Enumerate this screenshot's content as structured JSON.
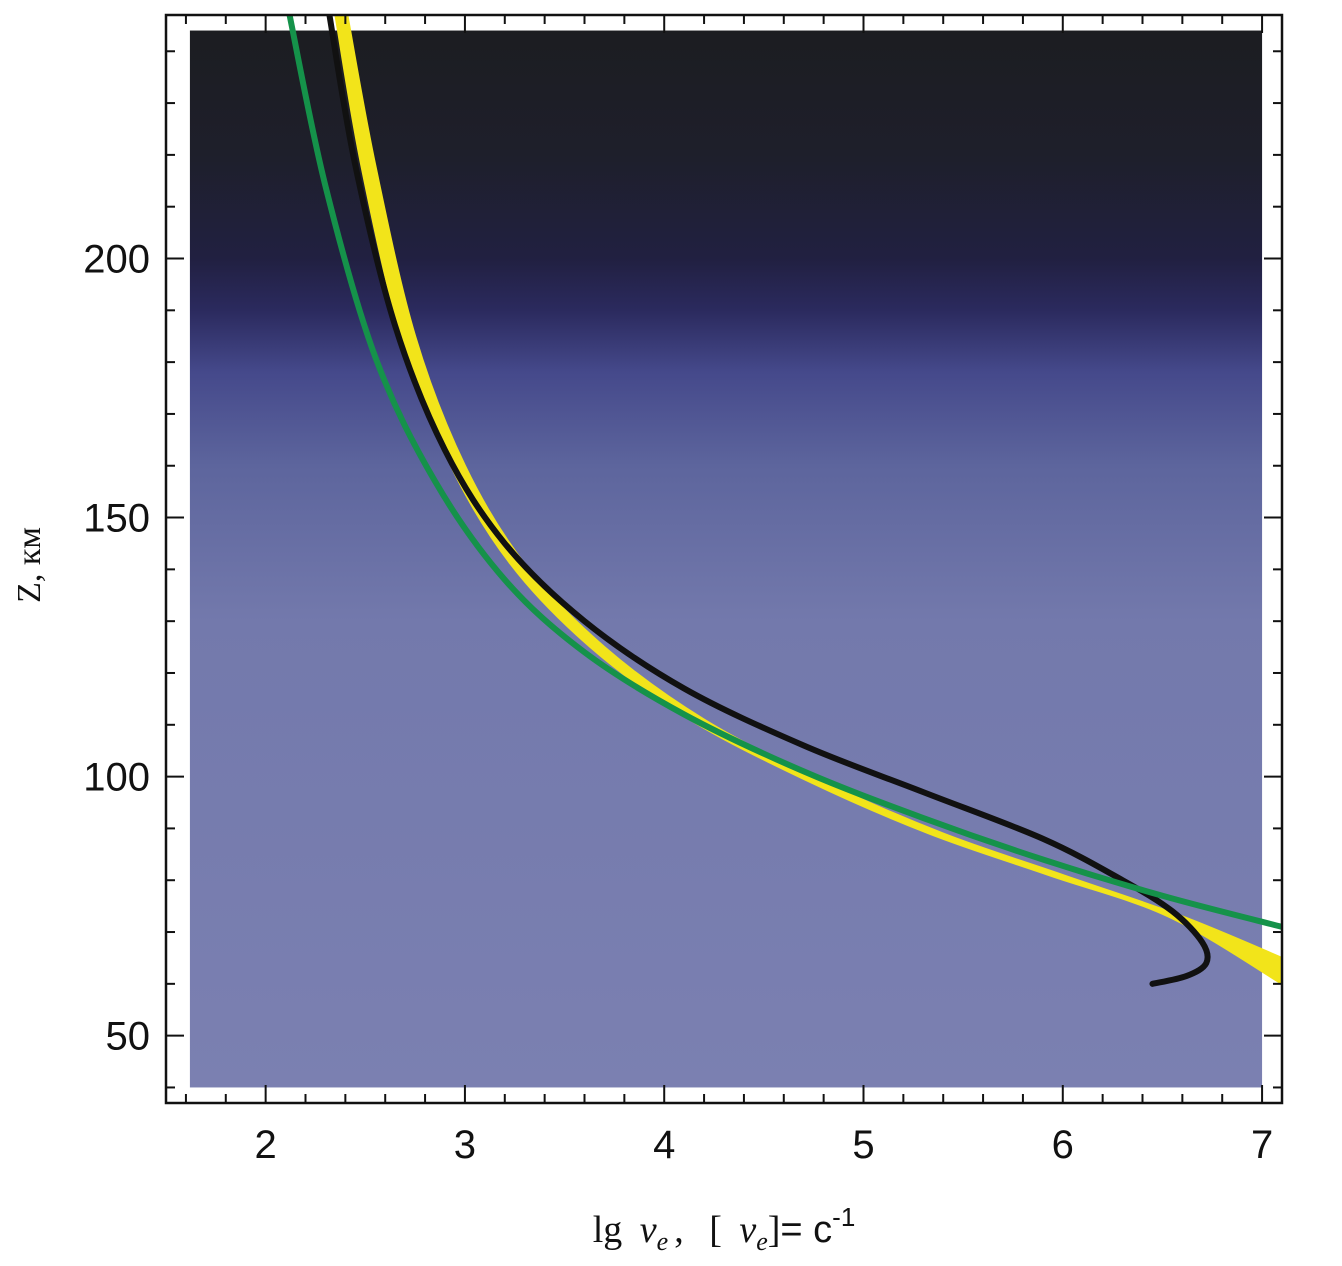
{
  "chart_data": {
    "type": "line",
    "title": "",
    "xlabel": {
      "main": "lg",
      "nu": "ν",
      "sub": "e",
      "sep": ",",
      "bracket_open": "[",
      "nu2": "ν",
      "sub2": "e",
      "bracket_close": "]",
      "eq": "= c",
      "exp": "-1"
    },
    "ylabel": "Z, км",
    "xlim": [
      1.5,
      7.1
    ],
    "ylim": [
      37,
      247
    ],
    "x_ticks": [
      "2",
      "3",
      "4",
      "5",
      "6",
      "7"
    ],
    "y_ticks": [
      "50",
      "100",
      "150",
      "200"
    ],
    "background": {
      "xrange": [
        1.62,
        7.0
      ],
      "yrange": [
        40,
        244
      ],
      "gradient": [
        {
          "z": 40,
          "color": "#7b80b1"
        },
        {
          "z": 130,
          "color": "#7379ac"
        },
        {
          "z": 160,
          "color": "#5d659d"
        },
        {
          "z": 178,
          "color": "#45498b"
        },
        {
          "z": 190,
          "color": "#2b2a5e"
        },
        {
          "z": 200,
          "color": "#212041"
        },
        {
          "z": 220,
          "color": "#1e1f2b"
        },
        {
          "z": 244,
          "color": "#1c1d21"
        }
      ]
    },
    "series": [
      {
        "color": "#f2e41a",
        "style": "band",
        "x": [
          2.41,
          2.55,
          2.75,
          3.0,
          3.3,
          3.7,
          4.2,
          4.8,
          5.4,
          6.0,
          6.6,
          7.1
        ],
        "y": [
          247,
          218,
          185,
          160,
          141,
          125,
          111,
          99,
          89,
          81,
          73,
          65
        ],
        "lower_x": [
          2.35,
          2.48,
          2.68,
          2.93,
          3.23,
          3.63,
          4.13,
          4.73,
          5.33,
          5.93,
          6.53,
          7.1
        ],
        "lower_y": [
          247,
          218,
          185,
          160,
          141,
          125,
          111,
          99,
          89,
          81,
          73,
          60
        ]
      },
      {
        "color": "#111111",
        "style": "line",
        "x": [
          2.32,
          2.45,
          2.65,
          2.9,
          3.2,
          3.6,
          4.1,
          4.7,
          5.3,
          5.9,
          6.3,
          6.55,
          6.7,
          6.72,
          6.62,
          6.45
        ],
        "y": [
          247,
          218,
          187,
          163,
          145,
          130,
          117,
          106,
          97,
          88,
          80,
          74,
          68,
          64,
          61.5,
          60
        ]
      },
      {
        "color": "#15924a",
        "style": "line",
        "x": [
          2.12,
          2.3,
          2.55,
          2.85,
          3.2,
          3.6,
          4.1,
          4.7,
          5.3,
          5.9,
          6.5,
          7.1
        ],
        "y": [
          247,
          214,
          181,
          157,
          138,
          124,
          112,
          101,
          92,
          84,
          77,
          71
        ]
      }
    ]
  }
}
